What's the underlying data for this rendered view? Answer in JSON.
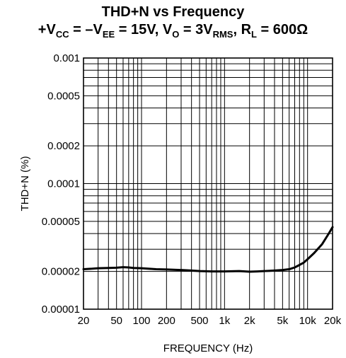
{
  "chart_data": {
    "type": "line",
    "title": "THD+N vs Frequency",
    "subtitle_parts": {
      "p1": "+V",
      "s1": "CC",
      "p2": " = –V",
      "s2": "EE",
      "p3": " = 15V, V",
      "s3": "O",
      "p4": " = 3V",
      "s4": "RMS",
      "p5": ", R",
      "s5": "L",
      "p6": " = 600Ω"
    },
    "xlabel": "FREQUENCY (Hz)",
    "ylabel": "THD+N (%)",
    "x_scale": "log",
    "y_scale": "log",
    "xlim": [
      20,
      20000
    ],
    "ylim": [
      1e-05,
      0.001
    ],
    "grid": true,
    "x_ticks": [
      {
        "v": 20,
        "label": "20"
      },
      {
        "v": 50,
        "label": "50"
      },
      {
        "v": 100,
        "label": "100"
      },
      {
        "v": 200,
        "label": "200"
      },
      {
        "v": 500,
        "label": "500"
      },
      {
        "v": 1000,
        "label": "1k"
      },
      {
        "v": 2000,
        "label": "2k"
      },
      {
        "v": 5000,
        "label": "5k"
      },
      {
        "v": 10000,
        "label": "10k"
      },
      {
        "v": 20000,
        "label": "20k"
      }
    ],
    "y_ticks": [
      {
        "v": 0.001,
        "label": "0.001"
      },
      {
        "v": 0.0005,
        "label": "0.0005"
      },
      {
        "v": 0.0002,
        "label": "0.0002"
      },
      {
        "v": 0.0001,
        "label": "0.0001"
      },
      {
        "v": 5e-05,
        "label": "0.00005"
      },
      {
        "v": 2e-05,
        "label": "0.00002"
      },
      {
        "v": 1e-05,
        "label": "0.00001"
      }
    ],
    "x_grid": [
      20,
      30,
      40,
      50,
      60,
      70,
      80,
      90,
      100,
      200,
      300,
      400,
      500,
      600,
      700,
      800,
      900,
      1000,
      2000,
      3000,
      4000,
      5000,
      6000,
      7000,
      8000,
      9000,
      10000,
      20000
    ],
    "y_grid": [
      1e-05,
      2e-05,
      3e-05,
      4e-05,
      5e-05,
      6e-05,
      7e-05,
      8e-05,
      9e-05,
      0.0001,
      0.0002,
      0.0003,
      0.0004,
      0.0005,
      0.0006,
      0.0007,
      0.0008,
      0.0009,
      0.001
    ],
    "series": [
      {
        "x": [
          20,
          25,
          30,
          40,
          50,
          60,
          70,
          80,
          100,
          150,
          200,
          300,
          400,
          500,
          700,
          1000,
          1500,
          2000,
          2500,
          3000,
          4000,
          5000,
          6000,
          7000,
          8000,
          9000,
          10000,
          12000,
          15000,
          18000,
          20000
        ],
        "y": [
          2.08e-05,
          2.1e-05,
          2.12e-05,
          2.13e-05,
          2.14e-05,
          2.16e-05,
          2.15e-05,
          2.13e-05,
          2.12e-05,
          2.08e-05,
          2.07e-05,
          2.05e-05,
          2.03e-05,
          2.01e-05,
          2e-05,
          2e-05,
          2.01e-05,
          1.99e-05,
          2e-05,
          2.01e-05,
          2.03e-05,
          2.05e-05,
          2.08e-05,
          2.15e-05,
          2.25e-05,
          2.35e-05,
          2.5e-05,
          2.8e-05,
          3.3e-05,
          4e-05,
          4.5e-05
        ]
      }
    ]
  },
  "colors": {
    "line": "#000000",
    "grid": "#000000",
    "background": "#ffffff"
  }
}
